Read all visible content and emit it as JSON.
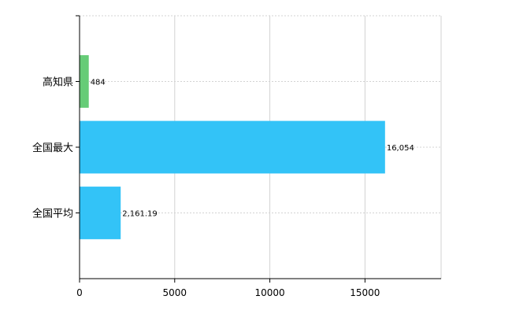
{
  "chart_data": {
    "type": "bar",
    "orientation": "horizontal",
    "categories": [
      "高知県",
      "全国最大",
      "全国平均"
    ],
    "values": [
      484,
      16054,
      2161.19
    ],
    "value_labels": [
      "484",
      "16,054",
      "2,161.19"
    ],
    "bar_colors": [
      "#66cc77",
      "#33c3f7",
      "#33c3f7"
    ],
    "title": "",
    "xlabel": "",
    "ylabel": "",
    "xlim": [
      0,
      19000
    ],
    "xticks": [
      0,
      5000,
      10000,
      15000
    ],
    "xtick_labels": [
      "0",
      "5000",
      "10000",
      "15000"
    ],
    "grid": true,
    "legend": "none"
  }
}
